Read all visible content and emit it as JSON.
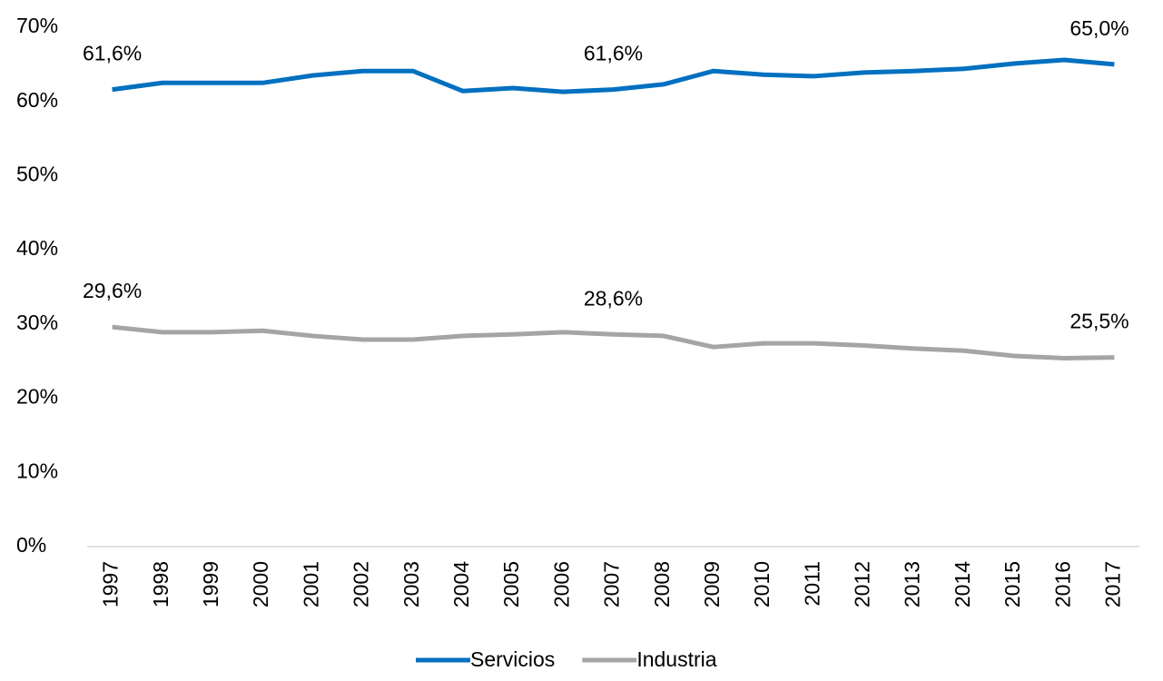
{
  "chart_data": {
    "type": "line",
    "categories": [
      "1997",
      "1998",
      "1999",
      "2000",
      "2001",
      "2002",
      "2003",
      "2004",
      "2005",
      "2006",
      "2007",
      "2008",
      "2009",
      "2010",
      "2011",
      "2012",
      "2013",
      "2014",
      "2015",
      "2016",
      "2017"
    ],
    "series": [
      {
        "name": "Servicios",
        "color": "#0070c0",
        "values": [
          61.6,
          62.5,
          62.5,
          62.5,
          63.5,
          64.1,
          64.1,
          61.4,
          61.8,
          61.3,
          61.6,
          62.3,
          64.1,
          63.6,
          63.4,
          63.9,
          64.1,
          64.4,
          65.1,
          65.6,
          65.0
        ],
        "value_labels": [
          "61,6%",
          null,
          null,
          null,
          null,
          null,
          null,
          null,
          null,
          null,
          "61,6%",
          null,
          null,
          null,
          null,
          null,
          null,
          null,
          null,
          null,
          "65,0%"
        ]
      },
      {
        "name": "Industria",
        "color": "#a5a5a5",
        "values": [
          29.6,
          28.9,
          28.9,
          29.1,
          28.4,
          27.9,
          27.9,
          28.4,
          28.6,
          28.9,
          28.6,
          28.4,
          26.9,
          27.4,
          27.4,
          27.1,
          26.7,
          26.4,
          25.7,
          25.4,
          25.5
        ],
        "value_labels": [
          "29,6%",
          null,
          null,
          null,
          null,
          null,
          null,
          null,
          null,
          null,
          "28,6%",
          null,
          null,
          null,
          null,
          null,
          null,
          null,
          null,
          null,
          "25,5%"
        ]
      }
    ],
    "ylim": [
      0,
      70
    ],
    "yticks": [
      {
        "value": 0,
        "label": "0%"
      },
      {
        "value": 10,
        "label": "10%"
      },
      {
        "value": 20,
        "label": "20%"
      },
      {
        "value": 30,
        "label": "30%"
      },
      {
        "value": 40,
        "label": "40%"
      },
      {
        "value": 50,
        "label": "50%"
      },
      {
        "value": 60,
        "label": "60%"
      },
      {
        "value": 70,
        "label": "70%"
      }
    ],
    "grid": false,
    "legend": "bottom"
  }
}
